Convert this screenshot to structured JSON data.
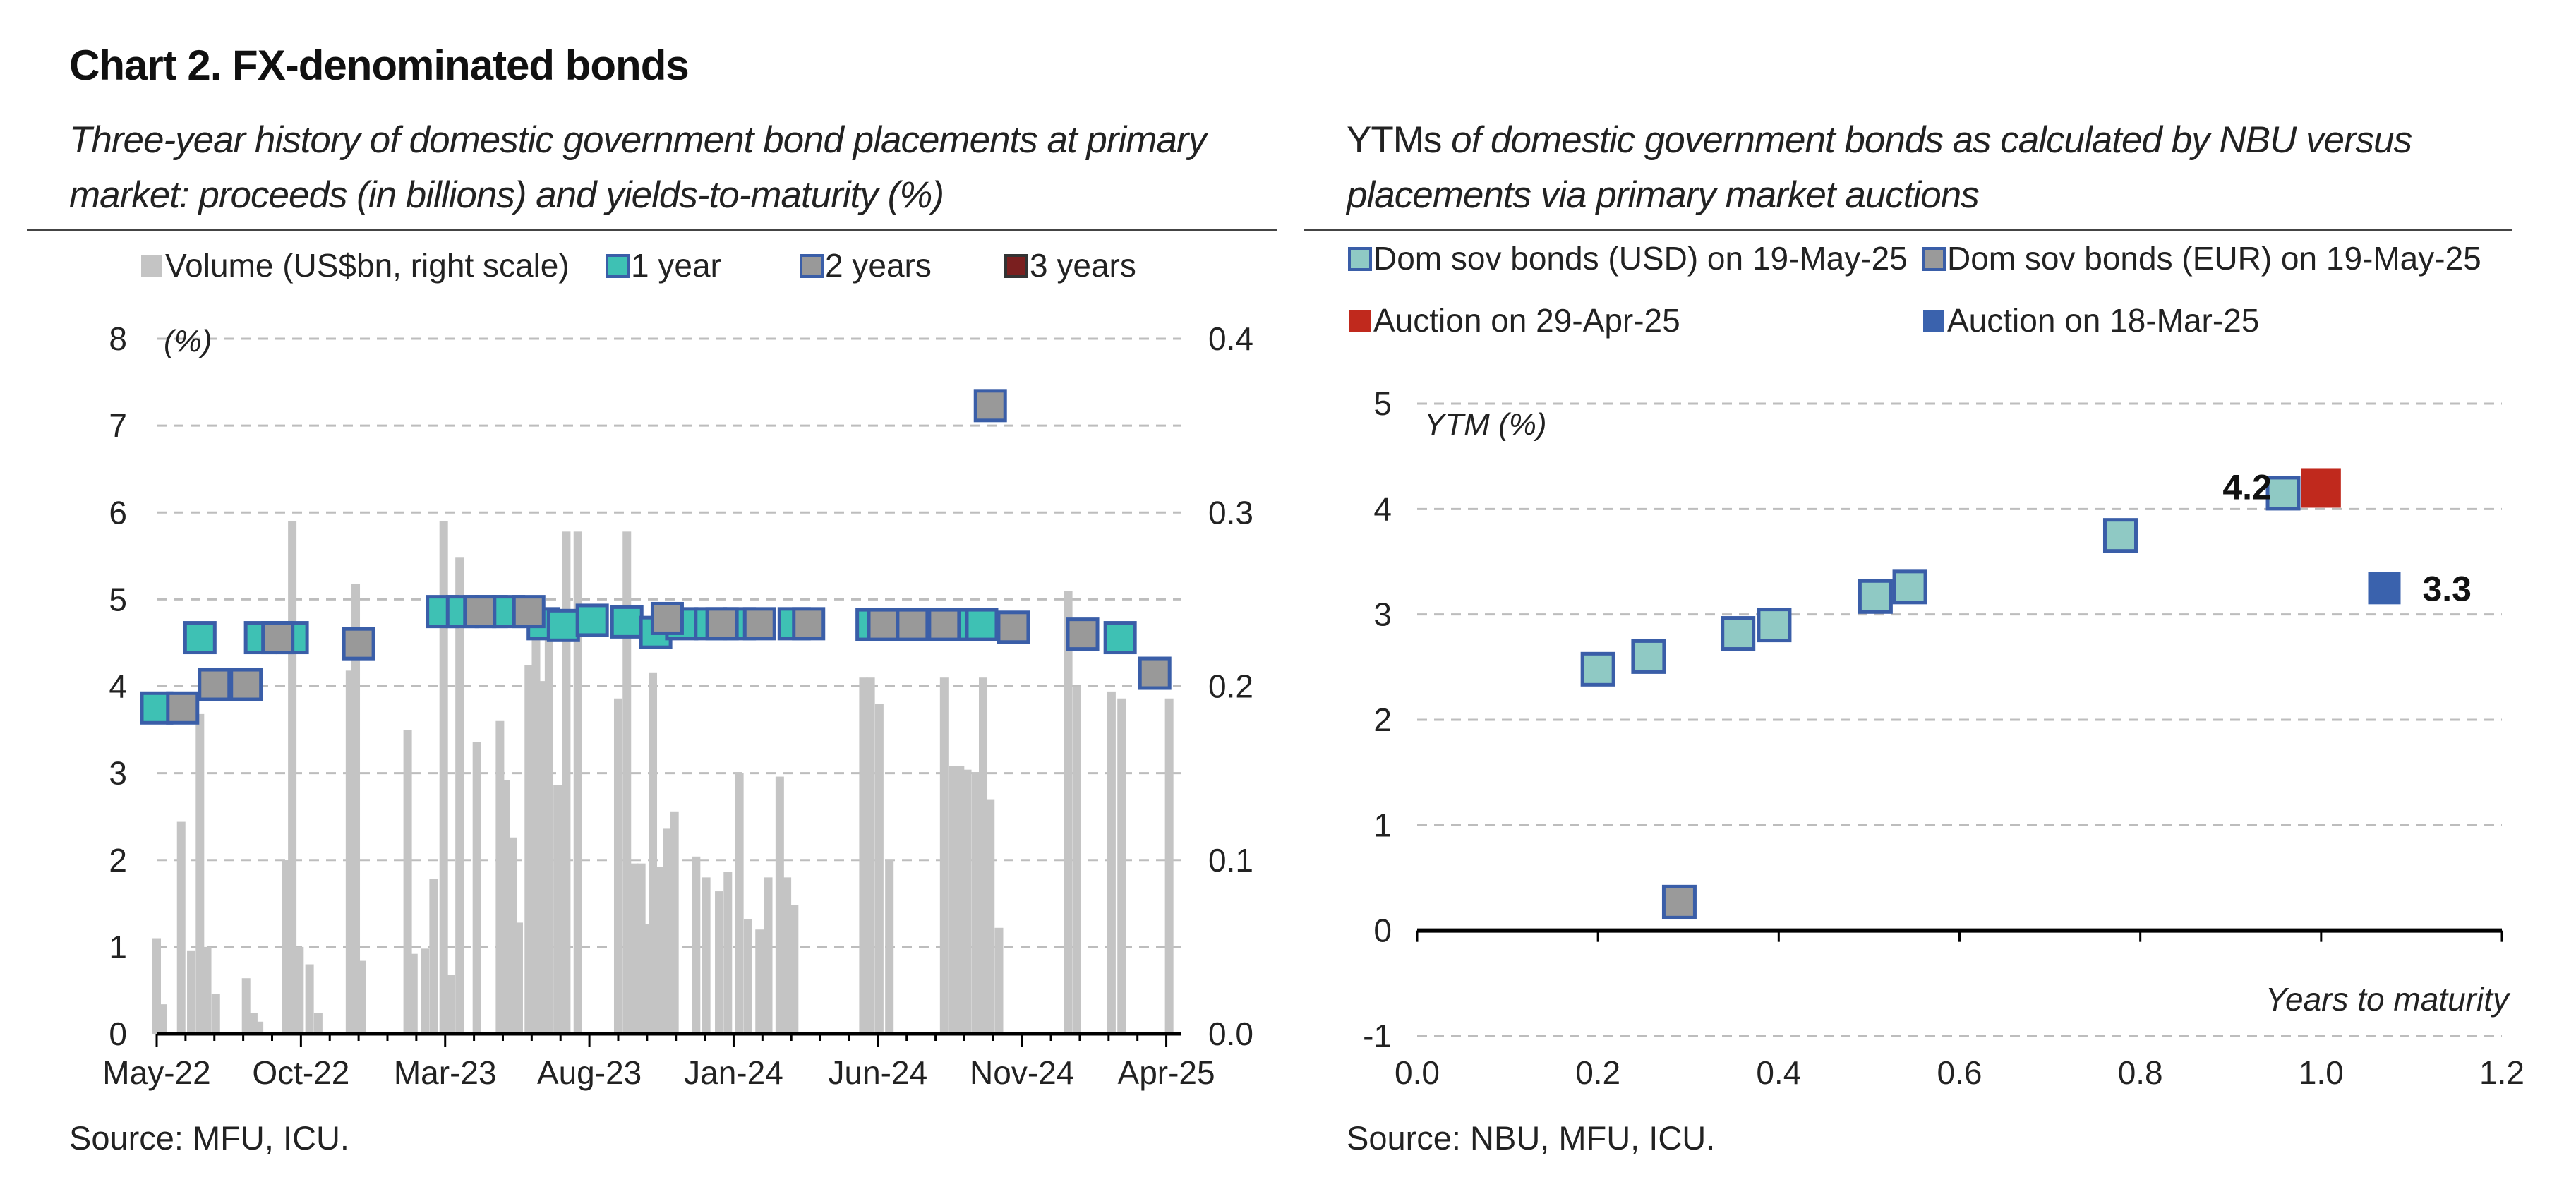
{
  "header": {
    "title": "Chart 2. FX-denominated bonds"
  },
  "left_panel": {
    "subtitle": "Three-year history of domestic government bond placements at primary market: proceeds (in billions) and yields-to-maturity (%)",
    "source": "Source: MFU, ICU."
  },
  "right_panel": {
    "subtitle_lead": "YTMs",
    "subtitle_rest": " of domestic government bonds as calculated by NBU versus placements via primary market auctions",
    "source": "Source: NBU, MFU, ICU."
  },
  "colors": {
    "volume_bar": "#c4c4c4",
    "one_year": "#3ec1b4",
    "two_years": "#999999",
    "three_years": "#7a1f1f",
    "marker_border": "#3a5ea8",
    "usd_bonds": "#8fc9c4",
    "eur_bonds": "#9a9a9a",
    "auction_apr": "#c0291d",
    "auction_mar": "#3a62ad",
    "grid": "#bdbdbd"
  },
  "chart_data": [
    {
      "type": "bar",
      "subtype": "bar + scatter, dual axis",
      "legend": [
        "Volume (US$bn, right scale)",
        "1 year",
        "2 years",
        "3 years"
      ],
      "legend_position": "top",
      "y_left": {
        "label": "(%)",
        "range": [
          0,
          8
        ],
        "ticks": [
          "0",
          "1",
          "2",
          "3",
          "4",
          "5",
          "6",
          "7",
          "8"
        ]
      },
      "y_right": {
        "range": [
          0.0,
          0.4
        ],
        "ticks": [
          "0.0",
          "0.1",
          "0.2",
          "0.3",
          "0.4"
        ]
      },
      "x_ticks": [
        "May-22",
        "Oct-22",
        "Mar-23",
        "Aug-23",
        "Jan-24",
        "Jun-24",
        "Nov-24",
        "Apr-25"
      ],
      "x_range_months": [
        0,
        35.5
      ],
      "grid": "horizontal dashed",
      "volume_series": {
        "name": "Volume (US$bn, right scale)",
        "months": [
          0.0,
          0.2,
          0.85,
          1.2,
          1.5,
          1.75,
          2.05,
          3.1,
          3.35,
          3.55,
          4.5,
          4.7,
          4.95,
          5.3,
          5.6,
          6.7,
          6.9,
          7.1,
          8.7,
          8.9,
          9.3,
          9.6,
          9.95,
          10.2,
          10.5,
          11.1,
          11.9,
          12.1,
          12.35,
          12.55,
          12.9,
          13.15,
          13.4,
          13.6,
          13.9,
          14.2,
          14.6,
          16.0,
          16.3,
          16.55,
          16.8,
          17.0,
          17.2,
          17.45,
          17.7,
          17.95,
          18.7,
          19.05,
          19.5,
          19.8,
          20.2,
          20.5,
          20.9,
          21.2,
          21.6,
          21.85,
          22.1,
          24.5,
          24.75,
          25.05,
          25.4,
          27.3,
          27.6,
          27.85,
          28.1,
          28.4,
          28.65,
          28.9,
          29.2,
          31.6,
          31.9,
          33.1,
          33.45,
          33.7,
          35.1
        ],
        "values": [
          0.055,
          0.017,
          0.122,
          0.048,
          0.184,
          0.05,
          0.023,
          0.032,
          0.012,
          0.007,
          0.1,
          0.295,
          0.05,
          0.04,
          0.012,
          0.209,
          0.259,
          0.042,
          0.175,
          0.046,
          0.049,
          0.089,
          0.295,
          0.034,
          0.274,
          0.168,
          0.18,
          0.146,
          0.113,
          0.064,
          0.212,
          0.231,
          0.203,
          0.231,
          0.143,
          0.289,
          0.289,
          0.193,
          0.289,
          0.098,
          0.098,
          0.063,
          0.208,
          0.096,
          0.118,
          0.128,
          0.102,
          0.09,
          0.082,
          0.093,
          0.15,
          0.066,
          0.06,
          0.09,
          0.148,
          0.09,
          0.074,
          0.205,
          0.205,
          0.19,
          0.1,
          0.205,
          0.154,
          0.154,
          0.152,
          0.15,
          0.205,
          0.135,
          0.061,
          0.255,
          0.2,
          0.197,
          0.193,
          0.0,
          0.193
        ]
      },
      "series": [
        {
          "name": "1 year",
          "months": [
            0.0,
            1.5,
            3.6,
            4.7,
            9.9,
            10.6,
            11.6,
            12.2,
            13.4,
            14.1,
            15.1,
            16.3,
            17.3,
            18.2,
            19.2,
            20.2,
            22.1,
            24.8,
            25.7,
            26.6,
            27.9,
            28.6,
            33.4
          ],
          "values": [
            3.75,
            4.56,
            4.56,
            4.56,
            4.86,
            4.86,
            4.86,
            4.86,
            4.72,
            4.7,
            4.76,
            4.74,
            4.62,
            4.72,
            4.72,
            4.72,
            4.72,
            4.71,
            4.71,
            4.71,
            4.71,
            4.71,
            4.56
          ]
        },
        {
          "name": "2 years",
          "months": [
            0.9,
            2.0,
            3.1,
            4.2,
            7.0,
            11.2,
            12.9,
            17.7,
            19.6,
            20.9,
            22.6,
            25.2,
            26.2,
            27.3,
            28.9,
            29.7,
            32.1,
            34.6
          ],
          "values": [
            3.75,
            4.02,
            4.02,
            4.56,
            4.49,
            4.86,
            4.86,
            4.78,
            4.72,
            4.72,
            4.72,
            4.71,
            4.71,
            4.71,
            7.23,
            4.68,
            4.6,
            4.15
          ]
        },
        {
          "name": "3 years",
          "months": [],
          "values": []
        }
      ]
    },
    {
      "type": "scatter",
      "ylabel": "YTM (%)",
      "xlabel": "Years to maturity",
      "xlim": [
        0.0,
        1.2
      ],
      "ylim": [
        -1,
        5
      ],
      "x_ticks": [
        "0.0",
        "0.2",
        "0.4",
        "0.6",
        "0.8",
        "1.0",
        "1.2"
      ],
      "y_ticks": [
        "-1",
        "0",
        "1",
        "2",
        "3",
        "4",
        "5"
      ],
      "grid": "horizontal dashed",
      "legend_position": "top",
      "series": [
        {
          "name": "Dom sov bonds (USD) on 19-May-25",
          "x": [
            0.2,
            0.256,
            0.355,
            0.395,
            0.507,
            0.545,
            0.778,
            0.958
          ],
          "y": [
            2.48,
            2.6,
            2.82,
            2.9,
            3.17,
            3.26,
            3.75,
            4.15
          ]
        },
        {
          "name": "Dom sov bonds (EUR) on 19-May-25",
          "x": [
            0.29
          ],
          "y": [
            0.27
          ]
        },
        {
          "name": "Auction on 29-Apr-25",
          "x": [
            1.0
          ],
          "y": [
            4.2
          ]
        },
        {
          "name": "Auction on 18-Mar-25",
          "x": [
            1.07
          ],
          "y": [
            3.25
          ]
        }
      ],
      "annotations": [
        "4.2",
        "3.3"
      ]
    }
  ]
}
